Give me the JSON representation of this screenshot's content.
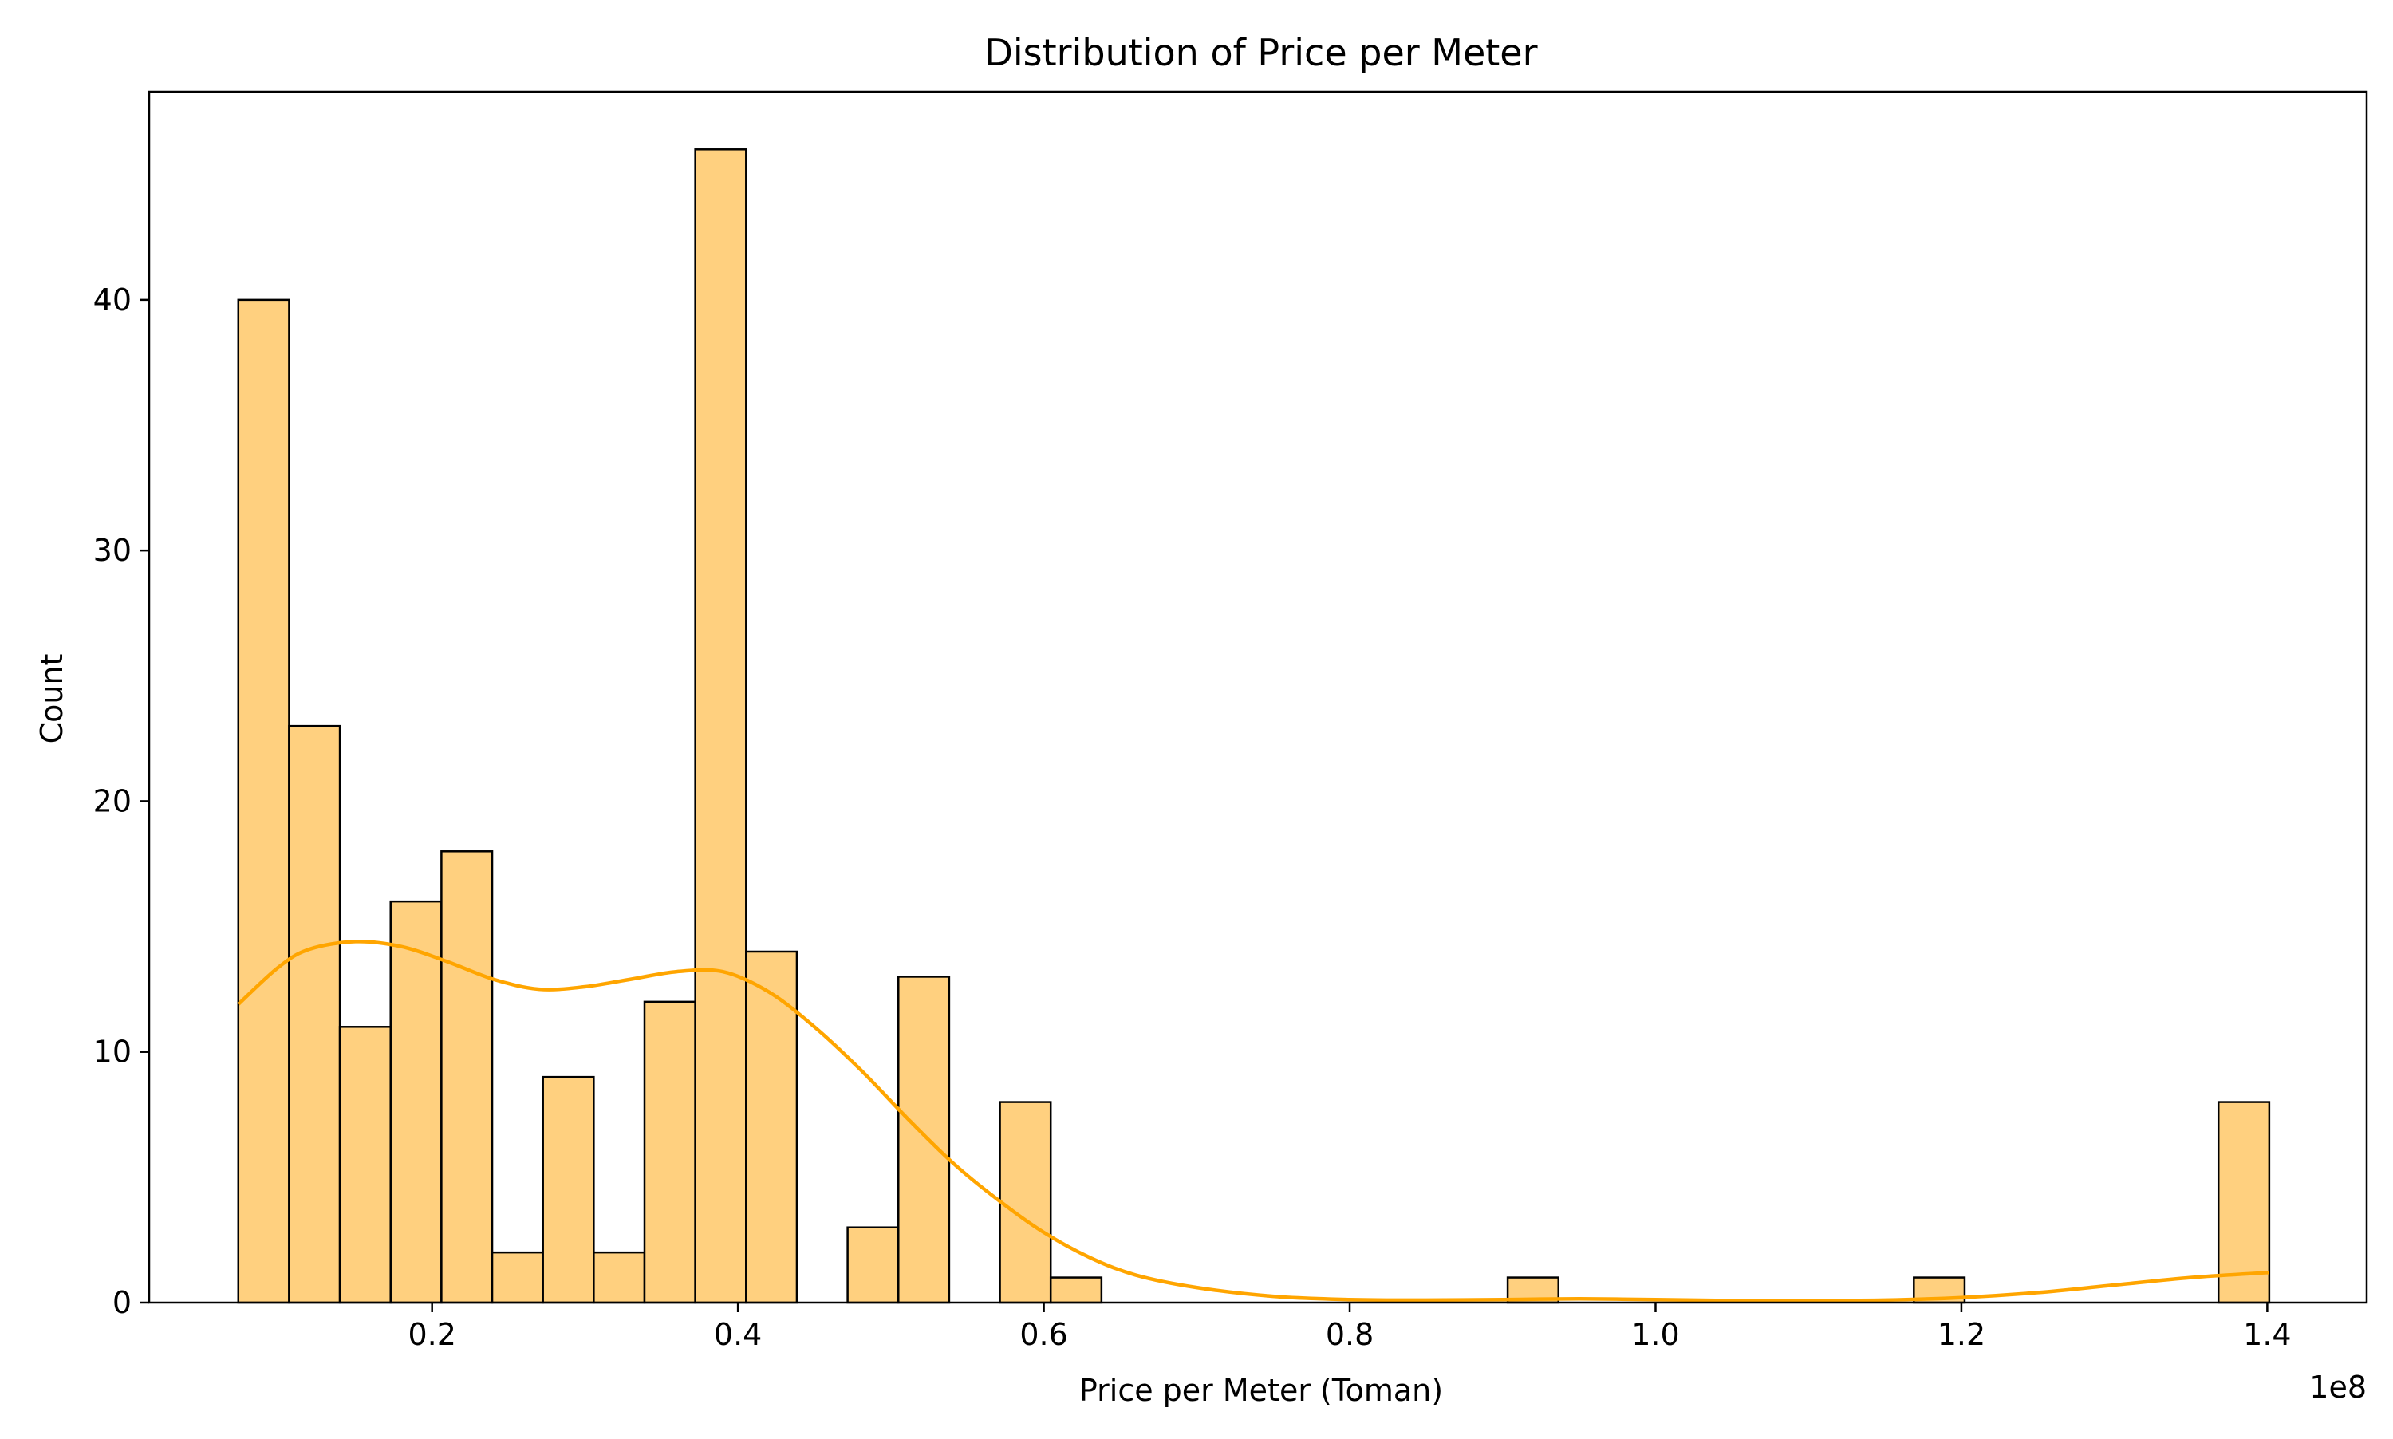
{
  "chart_data": {
    "type": "bar",
    "title": "Distribution of Price per Meter",
    "xlabel": "Price per Meter (Toman)",
    "ylabel": "Count",
    "x_offset_text": "1e8",
    "x_scale_note": "x values shown in units of 1e8 Toman",
    "xlim": [
      0.015,
      1.465
    ],
    "ylim": [
      0,
      48.3
    ],
    "x_ticks": [
      {
        "value": 0.2,
        "label": "0.2"
      },
      {
        "value": 0.4,
        "label": "0.4"
      },
      {
        "value": 0.6,
        "label": "0.6"
      },
      {
        "value": 0.8,
        "label": "0.8"
      },
      {
        "value": 1.0,
        "label": "1.0"
      },
      {
        "value": 1.2,
        "label": "1.2"
      },
      {
        "value": 1.4,
        "label": "1.4"
      }
    ],
    "y_ticks": [
      {
        "value": 0,
        "label": "0"
      },
      {
        "value": 10,
        "label": "10"
      },
      {
        "value": 20,
        "label": "20"
      },
      {
        "value": 30,
        "label": "30"
      },
      {
        "value": 40,
        "label": "40"
      }
    ],
    "grid": false,
    "bin_edges": [
      0.0733,
      0.1065,
      0.1397,
      0.1729,
      0.2061,
      0.2393,
      0.2725,
      0.3057,
      0.3389,
      0.3721,
      0.4053,
      0.4385,
      0.4717,
      0.5049,
      0.5381,
      0.5713,
      0.6045,
      0.6377,
      0.6709,
      0.7041,
      0.7373,
      0.7705,
      0.8037,
      0.8369,
      0.8701,
      0.9033,
      0.9365,
      0.9697,
      1.0029,
      1.0361,
      1.0693,
      1.1025,
      1.1357,
      1.1689,
      1.2021,
      1.2353,
      1.2685,
      1.3017,
      1.3349,
      1.3681,
      1.4013
    ],
    "counts": [
      40,
      23,
      11,
      16,
      18,
      2,
      9,
      2,
      12,
      46,
      14,
      0,
      3,
      13,
      0,
      8,
      1,
      0,
      0,
      0,
      0,
      0,
      0,
      0,
      0,
      1,
      0,
      0,
      0,
      0,
      0,
      0,
      0,
      1,
      0,
      0,
      0,
      0,
      0,
      8
    ],
    "kde": {
      "x": [
        0.0733,
        0.1,
        0.12,
        0.15,
        0.18,
        0.21,
        0.24,
        0.27,
        0.3,
        0.33,
        0.36,
        0.39,
        0.42,
        0.45,
        0.48,
        0.51,
        0.54,
        0.57,
        0.6,
        0.63,
        0.66,
        0.7,
        0.75,
        0.8,
        0.85,
        0.9,
        0.95,
        1.0,
        1.05,
        1.1,
        1.15,
        1.2,
        1.25,
        1.3,
        1.35,
        1.4013
      ],
      "y": [
        11.9,
        13.4,
        14.1,
        14.4,
        14.2,
        13.6,
        12.9,
        12.5,
        12.6,
        12.9,
        13.2,
        13.2,
        12.4,
        11.0,
        9.3,
        7.4,
        5.6,
        4.1,
        2.8,
        1.8,
        1.1,
        0.6,
        0.25,
        0.12,
        0.1,
        0.12,
        0.15,
        0.12,
        0.08,
        0.08,
        0.1,
        0.2,
        0.4,
        0.7,
        1.0,
        1.2
      ]
    },
    "colors": {
      "bar_fill": "#ffd07f",
      "bar_edge": "#000000",
      "kde_line": "#ffa500",
      "axes": "#000000",
      "background": "#ffffff"
    }
  }
}
